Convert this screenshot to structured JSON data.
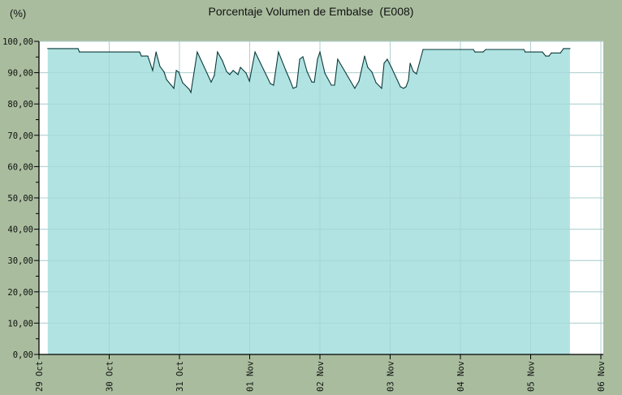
{
  "chart_data": {
    "type": "area",
    "title": "Porcentaje Volumen de Embalse  (E008)",
    "ylabel": "(%)",
    "xlabel": "",
    "ylim": [
      0,
      100
    ],
    "xlim": [
      "10-29 00:00",
      "11-06 00:00"
    ],
    "grid": true,
    "colors": {
      "background": "#a9bd9e",
      "plot": "#ffffff",
      "fill": "#b2e3e3",
      "line": "#0b3b3b",
      "grid": "#c8d4d4"
    },
    "yticks": [
      "0,00",
      "10,00",
      "20,00",
      "30,00",
      "40,00",
      "50,00",
      "60,00",
      "70,00",
      "80,00",
      "90,00",
      "100,00"
    ],
    "xticks": [
      {
        "t": "10-29 00:00",
        "label": "29 Oct"
      },
      {
        "t": "10-30 00:00",
        "label": "30 Oct"
      },
      {
        "t": "10-31 00:00",
        "label": "31 Oct"
      },
      {
        "t": "11-01 00:00",
        "label": "01 Nov"
      },
      {
        "t": "11-02 00:00",
        "label": "02 Nov"
      },
      {
        "t": "11-03 00:00",
        "label": "03 Nov"
      },
      {
        "t": "11-04 00:00",
        "label": "04 Nov"
      },
      {
        "t": "11-05 00:00",
        "label": "05 Nov"
      },
      {
        "t": "11-06 00:00",
        "label": "06 Nov"
      }
    ],
    "series": [
      {
        "x": [
          "10-29 03:00",
          "10-29 13:20",
          "10-29 13:50",
          "10-30 10:25",
          "10-30 11:00",
          "10-30 13:10",
          "10-30 14:50",
          "10-30 16:00",
          "10-30 17:20",
          "10-30 18:45",
          "10-30 19:35",
          "10-30 22:05",
          "10-30 22:55",
          "10-30 23:45",
          "10-31 01:05",
          "10-31 03:20",
          "10-31 03:55",
          "10-31 06:05",
          "10-31 10:50",
          "10-31 11:55",
          "10-31 13:00",
          "10-31 14:40",
          "10-31 16:05",
          "10-31 17:10",
          "10-31 18:20",
          "10-31 20:00",
          "10-31 20:50",
          "10-31 22:45",
          "10-31 23:55",
          "11-01 01:50",
          "11-01 07:05",
          "11-01 08:10",
          "11-01 09:50",
          "11-01 12:20",
          "11-01 13:40",
          "11-01 14:50",
          "11-01 16:00",
          "11-01 17:05",
          "11-01 18:10",
          "11-01 19:35",
          "11-01 21:15",
          "11-01 22:05",
          "11-01 23:10",
          "11-02 00:00",
          "11-02 01:40",
          "11-02 03:55",
          "11-02 05:00",
          "11-02 06:05",
          "11-02 11:55",
          "11-02 13:20",
          "11-02 15:15",
          "11-02 16:20",
          "11-02 17:45",
          "11-02 19:10",
          "11-02 21:05",
          "11-02 21:55",
          "11-02 23:00",
          "11-03 00:25",
          "11-03 03:30",
          "11-03 04:35",
          "11-03 05:25",
          "11-03 06:15",
          "11-03 06:50",
          "11-03 07:55",
          "11-03 09:00",
          "11-03 11:15",
          "11-04 04:25",
          "11-04 05:00",
          "11-04 07:45",
          "11-04 08:40",
          "11-04 21:40",
          "11-04 22:10",
          "11-05 04:00",
          "11-05 05:10",
          "11-05 06:15",
          "11-05 07:05",
          "11-05 10:10",
          "11-05 11:15",
          "11-05 13:25"
        ],
        "values": [
          97.7,
          97.7,
          96.6,
          96.6,
          95.3,
          95.3,
          90.7,
          96.6,
          92.0,
          90.2,
          87.8,
          85.0,
          90.7,
          90.2,
          86.8,
          84.7,
          83.7,
          96.6,
          87.0,
          89.1,
          96.6,
          93.8,
          90.4,
          89.4,
          90.7,
          89.4,
          91.7,
          89.9,
          87.3,
          96.6,
          86.5,
          86.0,
          96.6,
          90.7,
          87.8,
          85.0,
          85.5,
          94.3,
          95.1,
          90.4,
          87.0,
          87.0,
          94.3,
          96.6,
          89.9,
          86.0,
          86.0,
          94.3,
          85.0,
          87.3,
          95.3,
          91.7,
          90.2,
          86.8,
          85.0,
          93.0,
          94.3,
          91.7,
          85.5,
          85.0,
          85.5,
          87.6,
          93.0,
          90.4,
          89.6,
          97.4,
          97.4,
          96.6,
          96.6,
          97.4,
          97.4,
          96.6,
          96.6,
          95.3,
          95.3,
          96.3,
          96.3,
          97.7,
          97.7
        ]
      }
    ]
  }
}
